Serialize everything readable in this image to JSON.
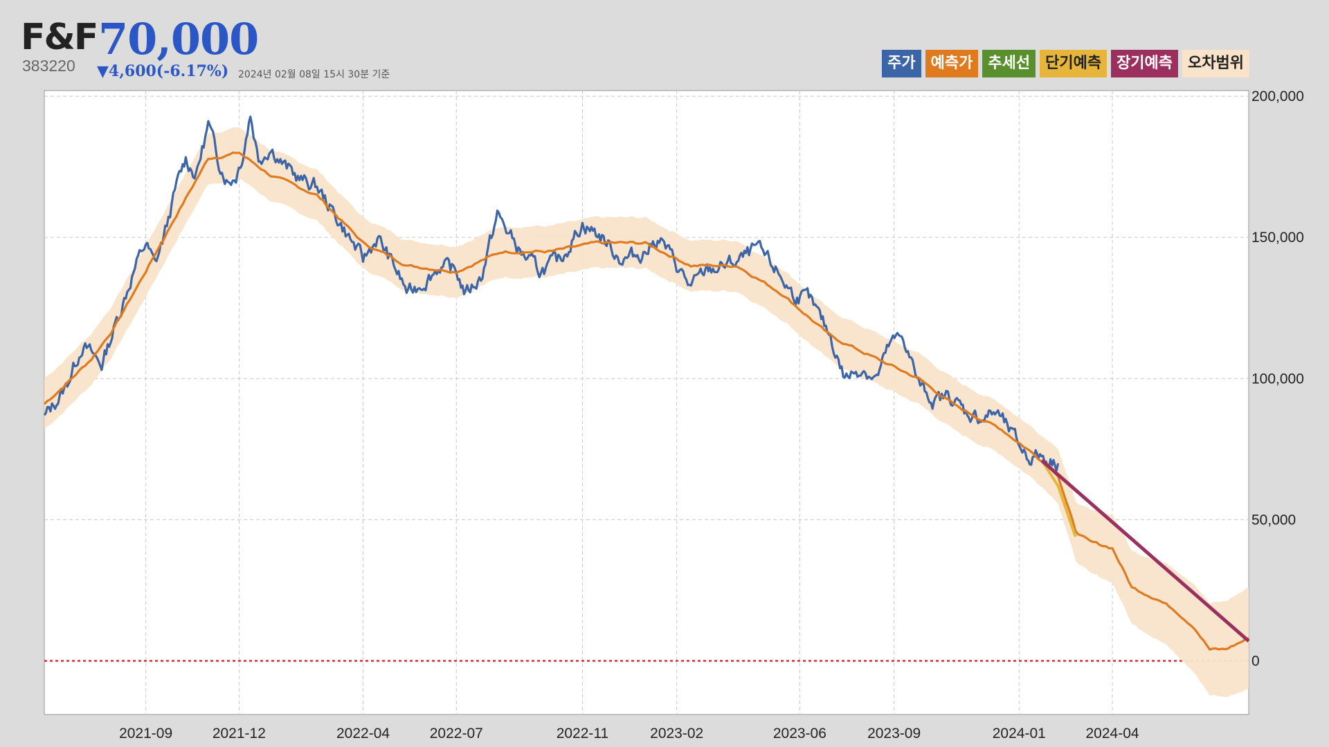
{
  "header": {
    "name": "F&F",
    "price": "70,000",
    "code": "383220",
    "change": "▼4,600(-6.17%)",
    "timestamp": "2024년 02월 08일 15시 30분 기준"
  },
  "legend": [
    {
      "label": "주가",
      "color": "#3c65a8",
      "text_color": "#ffffff"
    },
    {
      "label": "예측가",
      "color": "#e07a1f",
      "text_color": "#ffffff"
    },
    {
      "label": "추세선",
      "color": "#5a8f2e",
      "text_color": "#ffffff"
    },
    {
      "label": "단기예측",
      "color": "#e6b53a",
      "text_color": "#222222"
    },
    {
      "label": "장기예측",
      "color": "#9b2f5e",
      "text_color": "#ffffff"
    },
    {
      "label": "오차범위",
      "color": "#f9e4cb",
      "text_color": "#222222"
    }
  ],
  "chart_data": {
    "type": "line",
    "xlabel": "",
    "ylabel": "",
    "ylim": [
      -19000,
      202000
    ],
    "xlim": [
      "2021-05-25",
      "2024-08-12"
    ],
    "x_ticks": [
      "2021-09",
      "2021-12",
      "2022-04",
      "2022-07",
      "2022-11",
      "2023-02",
      "2023-06",
      "2023-09",
      "2024-01",
      "2024-04"
    ],
    "x_tick_dates": [
      "2021-09-01",
      "2021-12-01",
      "2022-04-01",
      "2022-07-01",
      "2022-11-01",
      "2023-02-01",
      "2023-06-01",
      "2023-09-01",
      "2024-01-01",
      "2024-04-01"
    ],
    "y_ticks": [
      0,
      50000,
      100000,
      150000,
      200000
    ],
    "y_tick_labels": [
      "0",
      "50,000",
      "100,000",
      "150,000",
      "200,000"
    ],
    "grid": true,
    "zero_line": {
      "value": 0,
      "color": "#d83030",
      "style": "dotted"
    },
    "colors": {
      "price": "#3c65a8",
      "prediction": "#e07a1f",
      "short_term": "#e6b53a",
      "long_term": "#9b2f5e",
      "band": "#f9e4cb"
    },
    "price": {
      "x": [
        "2021-05-25",
        "2021-06-15",
        "2021-07-01",
        "2021-07-20",
        "2021-08-05",
        "2021-08-20",
        "2021-09-01",
        "2021-09-10",
        "2021-09-20",
        "2021-10-01",
        "2021-10-10",
        "2021-10-20",
        "2021-11-01",
        "2021-11-10",
        "2021-11-20",
        "2021-11-28",
        "2021-12-05",
        "2021-12-12",
        "2021-12-20",
        "2022-01-01",
        "2022-01-15",
        "2022-02-01",
        "2022-02-15",
        "2022-03-01",
        "2022-03-15",
        "2022-04-01",
        "2022-04-15",
        "2022-05-01",
        "2022-05-15",
        "2022-06-01",
        "2022-06-15",
        "2022-07-01",
        "2022-07-10",
        "2022-07-25",
        "2022-08-10",
        "2022-09-01",
        "2022-09-20",
        "2022-10-10",
        "2022-11-01",
        "2022-11-20",
        "2022-12-10",
        "2023-01-01",
        "2023-01-15",
        "2023-02-01",
        "2023-02-15",
        "2023-03-01",
        "2023-03-20",
        "2023-04-05",
        "2023-04-20",
        "2023-05-10",
        "2023-05-25",
        "2023-06-10",
        "2023-07-01",
        "2023-07-15",
        "2023-08-01",
        "2023-08-15",
        "2023-08-28",
        "2023-09-10",
        "2023-09-25",
        "2023-10-10",
        "2023-10-25",
        "2023-11-10",
        "2023-11-25",
        "2023-12-10",
        "2023-12-25",
        "2024-01-10",
        "2024-01-20",
        "2024-02-08"
      ],
      "values": [
        86000,
        97000,
        112000,
        105000,
        122000,
        138000,
        148000,
        140000,
        152000,
        168000,
        178000,
        172000,
        190000,
        178000,
        170000,
        172000,
        180000,
        194000,
        178000,
        182000,
        175000,
        170000,
        168000,
        160000,
        152000,
        142000,
        150000,
        140000,
        130000,
        135000,
        140000,
        138000,
        130000,
        136000,
        158000,
        145000,
        138000,
        142000,
        155000,
        150000,
        142000,
        145000,
        150000,
        140000,
        132000,
        138000,
        140000,
        142000,
        146000,
        138000,
        130000,
        128000,
        115000,
        100000,
        104000,
        100000,
        112000,
        115000,
        98000,
        92000,
        94000,
        88000,
        86000,
        88000,
        80000,
        72000,
        73000,
        70000
      ]
    },
    "prediction": {
      "x": [
        "2021-05-25",
        "2021-06-15",
        "2021-07-10",
        "2021-08-01",
        "2021-09-01",
        "2021-10-01",
        "2021-11-01",
        "2021-12-01",
        "2022-01-01",
        "2022-02-15",
        "2022-04-01",
        "2022-05-15",
        "2022-07-01",
        "2022-08-15",
        "2022-10-01",
        "2022-11-15",
        "2023-01-01",
        "2023-02-15",
        "2023-04-01",
        "2023-05-15",
        "2023-07-01",
        "2023-08-15",
        "2023-09-25",
        "2023-11-01",
        "2023-12-15",
        "2024-01-20",
        "2024-02-08",
        "2024-02-25",
        "2024-03-10",
        "2024-04-01",
        "2024-04-20",
        "2024-05-15",
        "2024-06-01",
        "2024-06-20",
        "2024-07-05",
        "2024-07-20",
        "2024-08-12"
      ],
      "values": [
        91000,
        98000,
        107000,
        118000,
        138000,
        158000,
        178000,
        180000,
        172000,
        165000,
        148000,
        140000,
        138000,
        145000,
        145000,
        148000,
        148000,
        140000,
        140000,
        130000,
        115000,
        107000,
        100000,
        90000,
        82000,
        72000,
        66000,
        46000,
        42000,
        40000,
        26000,
        22000,
        18000,
        12000,
        4000,
        4000,
        8000
      ]
    },
    "short_term": {
      "x": [
        "2024-01-23",
        "2024-02-08",
        "2024-02-25"
      ],
      "values": [
        71000,
        62000,
        44000
      ]
    },
    "long_term": {
      "x": [
        "2024-01-23",
        "2024-08-12"
      ],
      "values": [
        71000,
        7000
      ]
    },
    "band_halfwidth": 9000,
    "band_future_halfwidth": [
      9000,
      18000
    ]
  }
}
